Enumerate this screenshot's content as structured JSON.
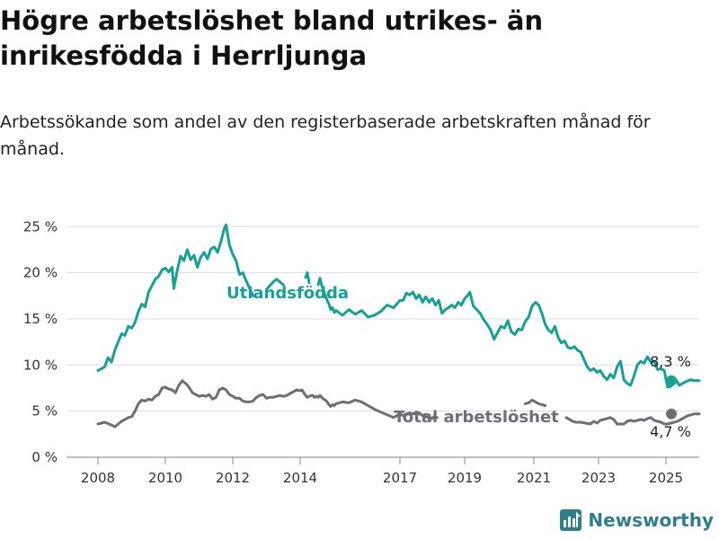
{
  "title": "Högre arbetslöshet bland utrikes- än inrikesfödda i Herrljunga",
  "subtitle": "Arbetssökande som andel av den registerbaserade arbetskraften månad för månad.",
  "brand": "Newsworthy",
  "chart_data": {
    "type": "line",
    "x_ticks": [
      "2008",
      "2010",
      "2012",
      "2014",
      "2017",
      "2019",
      "2021",
      "2023",
      "2025"
    ],
    "y_ticks": [
      "0 %",
      "5 %",
      "10 %",
      "15 %",
      "20 %",
      "25 %"
    ],
    "ylim": [
      0,
      26
    ],
    "grid": true,
    "series": [
      {
        "name": "Utlandsfödda",
        "color": "#15a196",
        "end_label": "8,3 %",
        "points": [
          [
            2008.0,
            9.4
          ],
          [
            2008.2,
            9.8
          ],
          [
            2008.3,
            10.8
          ],
          [
            2008.4,
            10.3
          ],
          [
            2008.5,
            11.6
          ],
          [
            2008.6,
            12.5
          ],
          [
            2008.7,
            13.4
          ],
          [
            2008.8,
            13.2
          ],
          [
            2008.9,
            14.2
          ],
          [
            2009.0,
            14.0
          ],
          [
            2009.1,
            14.6
          ],
          [
            2009.2,
            15.8
          ],
          [
            2009.3,
            16.6
          ],
          [
            2009.4,
            16.3
          ],
          [
            2009.5,
            17.9
          ],
          [
            2009.6,
            18.6
          ],
          [
            2009.7,
            19.3
          ],
          [
            2009.8,
            19.6
          ],
          [
            2009.9,
            20.3
          ],
          [
            2010.0,
            20.5
          ],
          [
            2010.1,
            20.1
          ],
          [
            2010.2,
            20.6
          ],
          [
            2010.25,
            18.3
          ],
          [
            2010.35,
            20.2
          ],
          [
            2010.45,
            21.8
          ],
          [
            2010.55,
            21.3
          ],
          [
            2010.65,
            22.5
          ],
          [
            2010.75,
            21.4
          ],
          [
            2010.85,
            21.9
          ],
          [
            2010.95,
            20.6
          ],
          [
            2011.05,
            21.7
          ],
          [
            2011.15,
            22.2
          ],
          [
            2011.25,
            21.5
          ],
          [
            2011.35,
            22.6
          ],
          [
            2011.45,
            22.8
          ],
          [
            2011.55,
            22.2
          ],
          [
            2011.65,
            23.4
          ],
          [
            2011.75,
            24.8
          ],
          [
            2011.8,
            25.2
          ],
          [
            2011.9,
            23.0
          ],
          [
            2012.0,
            22.0
          ],
          [
            2012.1,
            21.3
          ],
          [
            2012.2,
            19.8
          ],
          [
            2012.3,
            20.0
          ],
          [
            2012.4,
            19.1
          ],
          [
            2012.6,
            17.5
          ],
          [
            2013.0,
            18.2
          ],
          [
            2013.2,
            19.0
          ],
          [
            2013.3,
            19.3
          ],
          [
            2013.5,
            18.7
          ],
          [
            2014.3,
            19.5
          ],
          [
            2014.4,
            20.0
          ],
          [
            2014.5,
            18.9
          ],
          [
            2015.0,
            18.7
          ],
          [
            2015.1,
            19.4
          ],
          [
            2015.2,
            18.6
          ],
          [
            2015.5,
            17.0
          ],
          [
            2015.6,
            16.6
          ],
          [
            2015.7,
            16.0
          ],
          [
            2015.8,
            16.2
          ],
          [
            2015.9,
            15.7
          ],
          [
            2016.0,
            15.9
          ],
          [
            2016.1,
            15.4
          ],
          [
            2016.2,
            16.0
          ],
          [
            2016.3,
            15.5
          ],
          [
            2016.4,
            15.9
          ],
          [
            2016.5,
            15.2
          ],
          [
            2016.6,
            15.4
          ],
          [
            2016.7,
            15.8
          ],
          [
            2016.8,
            16.5
          ],
          [
            2016.9,
            16.2
          ],
          [
            2017.0,
            17.0
          ],
          [
            2017.1,
            17.0
          ],
          [
            2017.2,
            17.8
          ],
          [
            2017.3,
            17.6
          ],
          [
            2017.4,
            17.9
          ],
          [
            2017.5,
            17.2
          ],
          [
            2017.6,
            17.6
          ],
          [
            2017.7,
            16.8
          ],
          [
            2017.8,
            17.4
          ],
          [
            2017.9,
            16.8
          ],
          [
            2018.0,
            17.2
          ],
          [
            2018.1,
            16.5
          ],
          [
            2018.2,
            17.0
          ],
          [
            2018.3,
            15.6
          ],
          [
            2018.4,
            16.0
          ],
          [
            2018.5,
            16.2
          ],
          [
            2018.6,
            16.5
          ],
          [
            2018.7,
            16.2
          ],
          [
            2018.8,
            16.8
          ],
          [
            2018.9,
            16.5
          ],
          [
            2019.0,
            17.2
          ],
          [
            2019.1,
            17.6
          ],
          [
            2019.15,
            17.9
          ],
          [
            2019.25,
            16.4
          ],
          [
            2019.35,
            16.0
          ],
          [
            2019.45,
            15.6
          ],
          [
            2019.55,
            14.9
          ],
          [
            2019.65,
            14.4
          ],
          [
            2019.75,
            13.8
          ],
          [
            2019.85,
            12.8
          ],
          [
            2019.95,
            13.5
          ],
          [
            2020.05,
            14.2
          ],
          [
            2020.15,
            14.0
          ],
          [
            2020.25,
            14.8
          ],
          [
            2020.35,
            13.6
          ],
          [
            2020.45,
            13.3
          ],
          [
            2020.55,
            13.9
          ],
          [
            2020.65,
            13.8
          ],
          [
            2020.75,
            14.7
          ],
          [
            2020.85,
            15.2
          ],
          [
            2020.95,
            16.4
          ],
          [
            2021.05,
            16.8
          ],
          [
            2021.15,
            16.5
          ],
          [
            2021.25,
            15.6
          ],
          [
            2021.35,
            14.4
          ],
          [
            2021.45,
            13.8
          ],
          [
            2021.55,
            13.5
          ],
          [
            2021.65,
            14.2
          ],
          [
            2021.75,
            13.0
          ],
          [
            2021.85,
            12.4
          ],
          [
            2021.95,
            12.6
          ],
          [
            2022.05,
            11.9
          ],
          [
            2022.15,
            11.8
          ],
          [
            2022.25,
            12.0
          ],
          [
            2022.35,
            11.6
          ],
          [
            2022.45,
            11.4
          ],
          [
            2022.55,
            10.6
          ],
          [
            2022.65,
            9.8
          ],
          [
            2022.75,
            9.4
          ],
          [
            2022.85,
            9.6
          ],
          [
            2022.95,
            9.2
          ],
          [
            2023.05,
            9.4
          ],
          [
            2023.15,
            8.8
          ],
          [
            2023.25,
            8.4
          ],
          [
            2023.35,
            9.0
          ],
          [
            2023.45,
            8.6
          ],
          [
            2023.55,
            9.8
          ],
          [
            2023.65,
            10.4
          ],
          [
            2023.75,
            8.4
          ],
          [
            2023.85,
            8.0
          ],
          [
            2023.95,
            7.8
          ],
          [
            2024.05,
            8.8
          ],
          [
            2024.15,
            10.0
          ],
          [
            2024.25,
            10.4
          ],
          [
            2024.35,
            10.2
          ],
          [
            2024.45,
            10.9
          ],
          [
            2024.55,
            10.3
          ],
          [
            2024.65,
            10.4
          ],
          [
            2024.75,
            9.5
          ],
          [
            2024.85,
            9.6
          ],
          [
            2024.95,
            9.4
          ],
          [
            2025.05,
            7.6
          ],
          [
            2025.15,
            7.7
          ],
          [
            2025.3,
            8.4
          ],
          [
            2025.4,
            7.8
          ],
          [
            2025.5,
            8.0
          ],
          [
            2025.6,
            8.2
          ],
          [
            2025.75,
            8.4
          ],
          [
            2025.85,
            8.3
          ],
          [
            2026.0,
            8.3
          ]
        ]
      },
      {
        "name": "Total arbetslöshet",
        "color": "#6e6e73",
        "end_label": "4,7 %",
        "points": [
          [
            2008.0,
            3.6
          ],
          [
            2008.2,
            3.8
          ],
          [
            2008.4,
            3.5
          ],
          [
            2008.5,
            3.3
          ],
          [
            2008.7,
            3.9
          ],
          [
            2008.9,
            4.3
          ],
          [
            2009.0,
            4.4
          ],
          [
            2009.1,
            5.0
          ],
          [
            2009.2,
            5.8
          ],
          [
            2009.3,
            6.2
          ],
          [
            2009.4,
            6.1
          ],
          [
            2009.5,
            6.3
          ],
          [
            2009.6,
            6.2
          ],
          [
            2009.7,
            6.6
          ],
          [
            2009.8,
            6.8
          ],
          [
            2009.9,
            7.5
          ],
          [
            2010.0,
            7.6
          ],
          [
            2010.1,
            7.4
          ],
          [
            2010.2,
            7.3
          ],
          [
            2010.3,
            7.0
          ],
          [
            2010.4,
            7.8
          ],
          [
            2010.5,
            8.3
          ],
          [
            2010.6,
            8.0
          ],
          [
            2010.7,
            7.6
          ],
          [
            2010.8,
            7.0
          ],
          [
            2010.9,
            6.8
          ],
          [
            2011.0,
            6.6
          ],
          [
            2011.1,
            6.7
          ],
          [
            2011.2,
            6.6
          ],
          [
            2011.3,
            6.8
          ],
          [
            2011.4,
            6.3
          ],
          [
            2011.5,
            6.5
          ],
          [
            2011.6,
            7.3
          ],
          [
            2011.7,
            7.5
          ],
          [
            2011.8,
            7.3
          ],
          [
            2011.9,
            6.8
          ],
          [
            2012.0,
            6.6
          ],
          [
            2012.1,
            6.4
          ],
          [
            2012.2,
            6.4
          ],
          [
            2012.3,
            6.1
          ],
          [
            2012.4,
            6.0
          ],
          [
            2012.5,
            6.0
          ],
          [
            2012.6,
            6.1
          ],
          [
            2012.7,
            6.5
          ],
          [
            2012.8,
            6.7
          ],
          [
            2012.9,
            6.8
          ],
          [
            2013.0,
            6.4
          ],
          [
            2013.1,
            6.5
          ],
          [
            2013.2,
            6.5
          ],
          [
            2013.3,
            6.6
          ],
          [
            2013.4,
            6.7
          ],
          [
            2013.5,
            6.6
          ],
          [
            2013.6,
            6.7
          ],
          [
            2013.7,
            6.9
          ],
          [
            2013.8,
            7.1
          ],
          [
            2013.9,
            7.3
          ],
          [
            2014.0,
            7.2
          ],
          [
            2014.1,
            7.3
          ],
          [
            2014.2,
            7.0
          ],
          [
            2014.3,
            6.7
          ],
          [
            2014.4,
            6.5
          ],
          [
            2014.5,
            6.6
          ],
          [
            2014.6,
            6.7
          ],
          [
            2014.7,
            6.7
          ],
          [
            2014.8,
            6.5
          ],
          [
            2014.9,
            6.6
          ],
          [
            2015.0,
            6.5
          ],
          [
            2015.1,
            6.7
          ],
          [
            2015.2,
            6.5
          ],
          [
            2015.3,
            6.3
          ],
          [
            2015.4,
            6.2
          ],
          [
            2015.5,
            6.0
          ],
          [
            2015.6,
            5.7
          ],
          [
            2015.7,
            5.5
          ],
          [
            2015.8,
            5.7
          ],
          [
            2015.9,
            5.6
          ],
          [
            2016.0,
            5.8
          ],
          [
            2016.1,
            6.0
          ],
          [
            2016.2,
            5.9
          ],
          [
            2016.3,
            6.2
          ],
          [
            2016.4,
            6.0
          ],
          [
            2016.5,
            5.6
          ],
          [
            2016.6,
            5.2
          ],
          [
            2016.7,
            4.9
          ],
          [
            2016.8,
            4.6
          ],
          [
            2016.9,
            4.3
          ],
          [
            2017.0,
            4.7
          ],
          [
            2017.1,
            4.5
          ],
          [
            2017.2,
            4.7
          ],
          [
            2017.3,
            4.8
          ],
          [
            2017.4,
            4.7
          ],
          [
            2017.5,
            4.9
          ],
          [
            2017.6,
            4.8
          ],
          [
            2017.7,
            4.5
          ],
          [
            2017.8,
            4.4
          ],
          [
            2017.9,
            4.3
          ],
          [
            2018.0,
            4.2
          ],
          [
            2018.05,
            4.4
          ],
          [
            2018.15,
            4.3
          ],
          [
            2020.75,
            5.8
          ],
          [
            2020.85,
            5.9
          ],
          [
            2020.95,
            6.2
          ],
          [
            2021.05,
            6.0
          ],
          [
            2021.15,
            5.8
          ],
          [
            2021.25,
            5.7
          ],
          [
            2021.35,
            5.6
          ],
          [
            2022.0,
            4.3
          ],
          [
            2022.1,
            4.1
          ],
          [
            2022.2,
            3.9
          ],
          [
            2022.3,
            3.8
          ],
          [
            2022.45,
            3.8
          ],
          [
            2022.6,
            3.7
          ],
          [
            2022.75,
            3.6
          ],
          [
            2022.85,
            3.9
          ],
          [
            2022.95,
            3.7
          ],
          [
            2023.05,
            4.0
          ],
          [
            2023.15,
            4.1
          ],
          [
            2023.25,
            4.2
          ],
          [
            2023.35,
            4.3
          ],
          [
            2023.45,
            4.1
          ],
          [
            2023.55,
            3.6
          ],
          [
            2023.65,
            3.6
          ],
          [
            2023.75,
            3.6
          ],
          [
            2023.85,
            3.9
          ],
          [
            2023.95,
            4.0
          ],
          [
            2024.05,
            3.9
          ],
          [
            2024.15,
            4.0
          ],
          [
            2024.25,
            4.1
          ],
          [
            2024.35,
            4.0
          ],
          [
            2024.45,
            4.2
          ],
          [
            2024.55,
            4.3
          ],
          [
            2024.65,
            4.0
          ],
          [
            2024.75,
            3.9
          ],
          [
            2024.85,
            3.8
          ],
          [
            2024.95,
            3.6
          ],
          [
            2025.05,
            3.6
          ],
          [
            2025.15,
            3.7
          ],
          [
            2025.25,
            3.8
          ],
          [
            2025.35,
            3.9
          ],
          [
            2025.45,
            4.1
          ],
          [
            2025.55,
            4.3
          ],
          [
            2025.65,
            4.5
          ],
          [
            2025.75,
            4.6
          ],
          [
            2025.85,
            4.7
          ],
          [
            2026.0,
            4.7
          ]
        ]
      }
    ]
  }
}
